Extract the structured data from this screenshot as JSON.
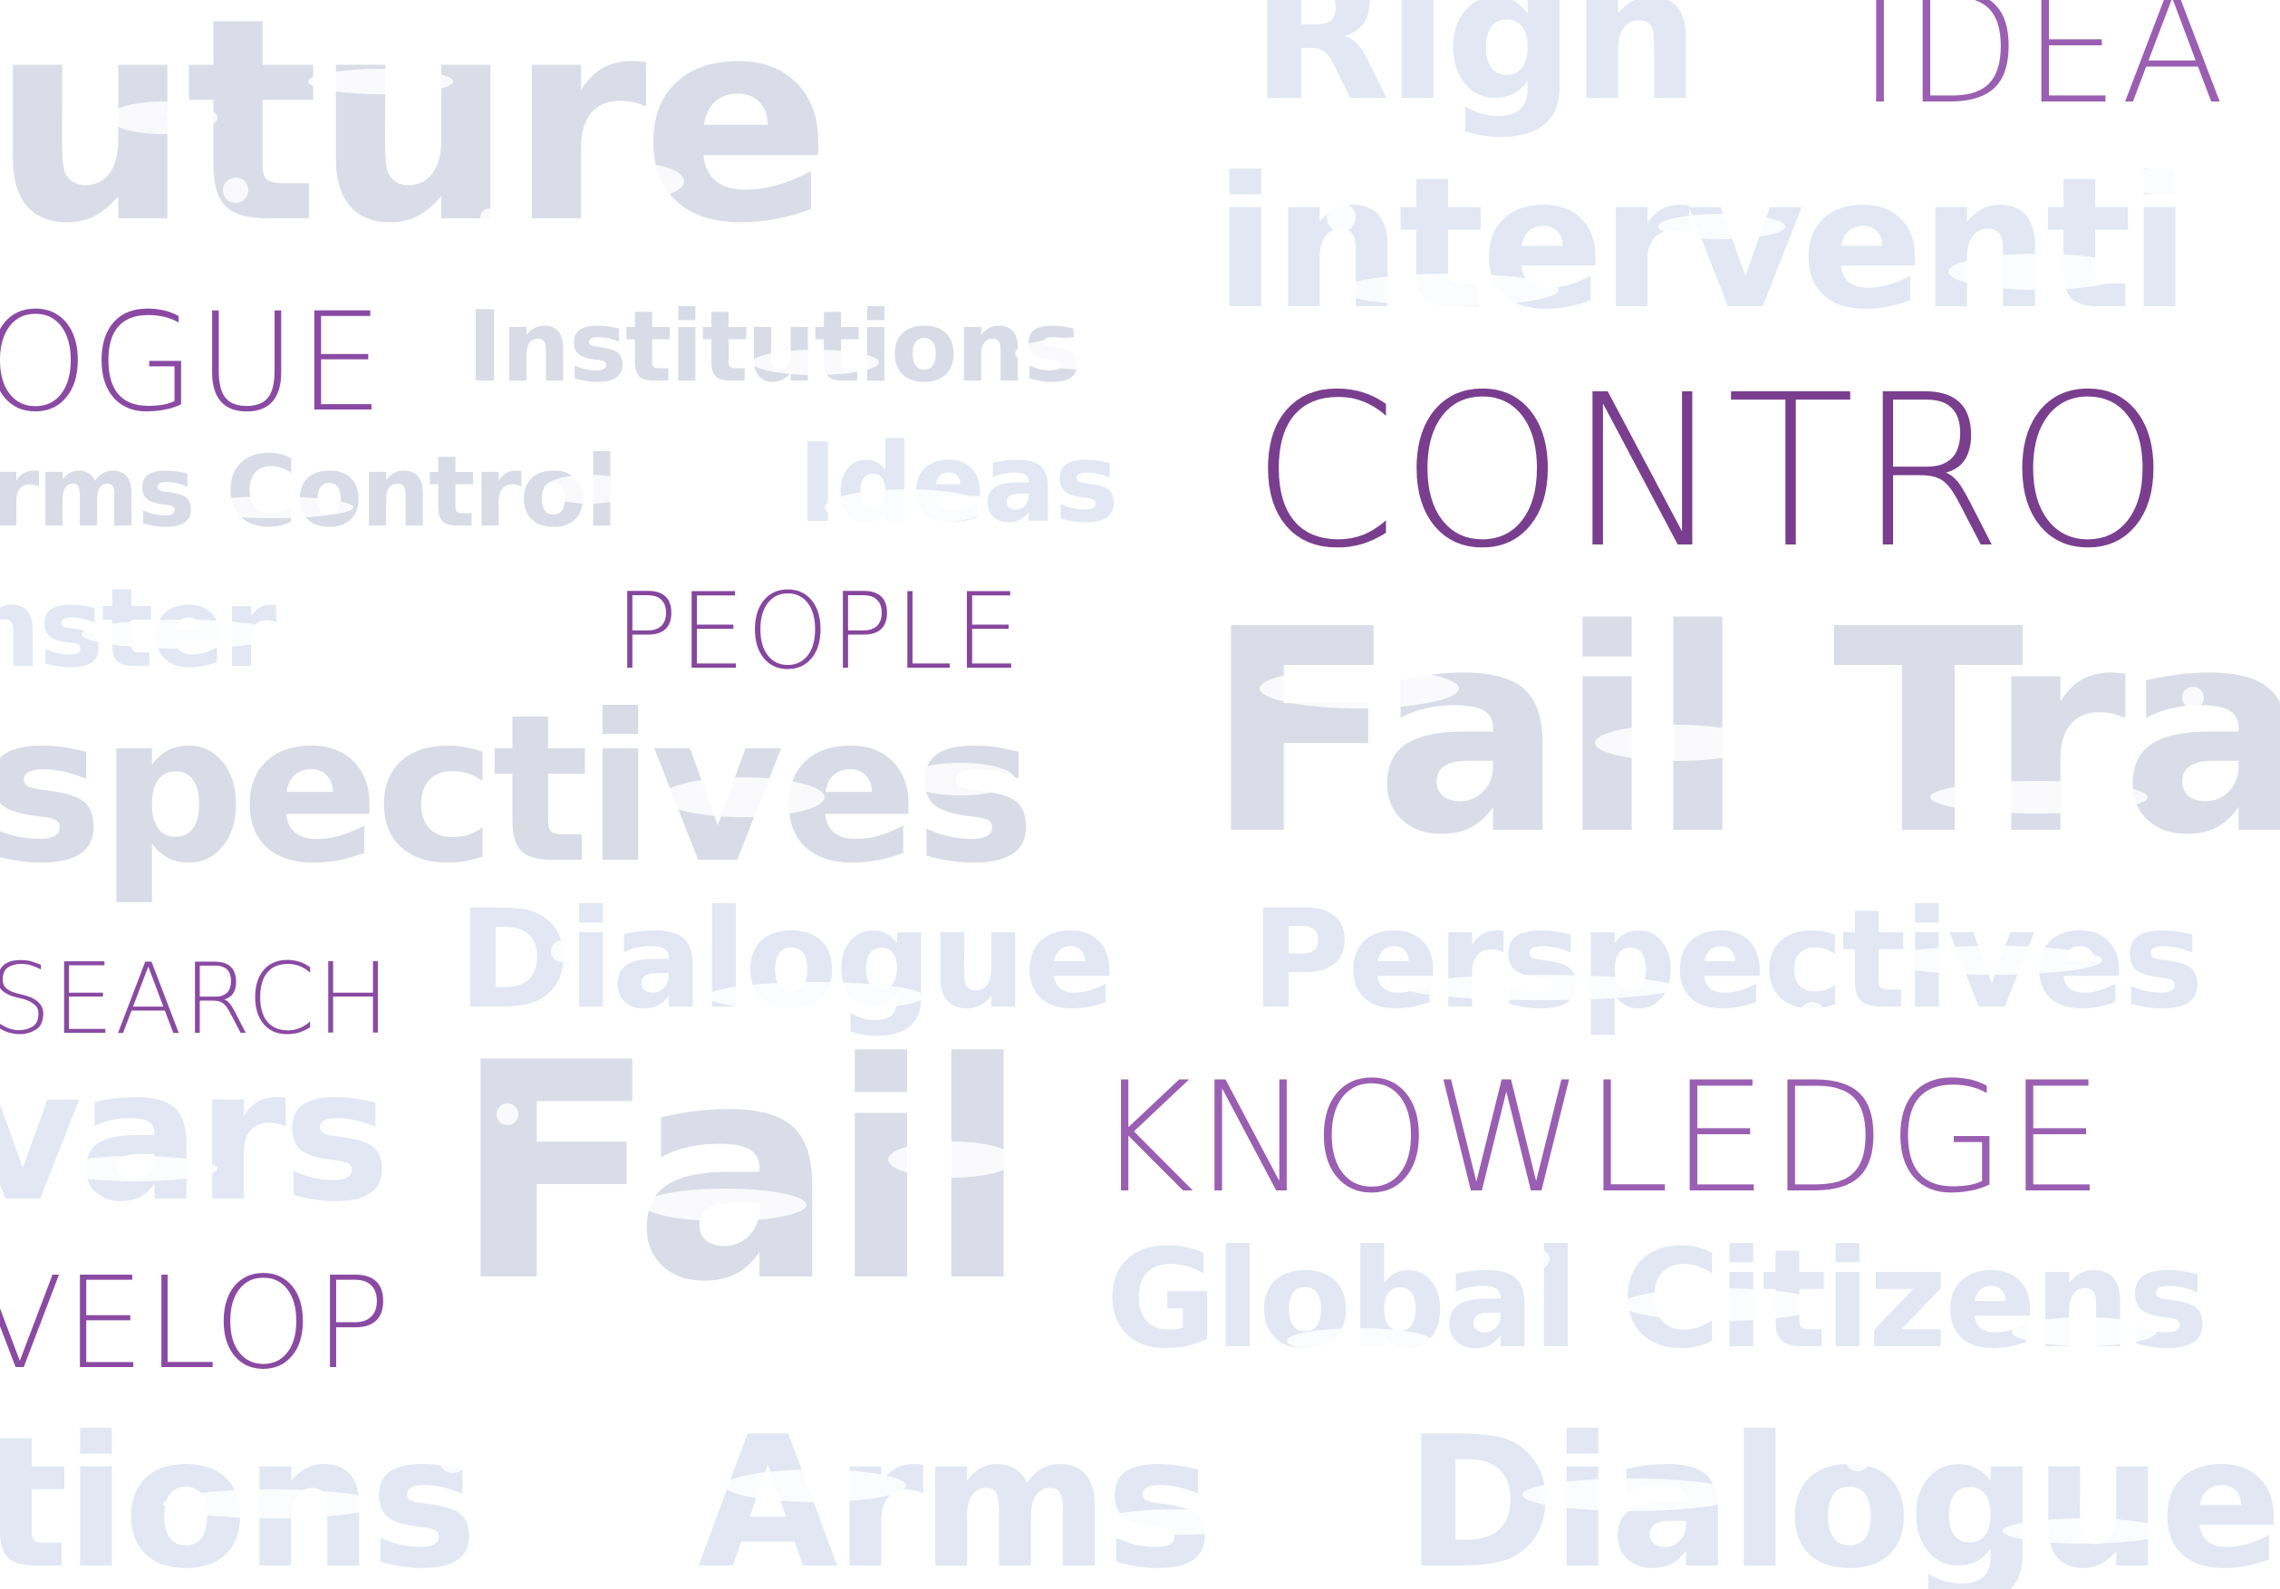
{
  "colors": {
    "background": "#ffffff",
    "word_light": "#e2e7f3",
    "word_gray": "#d9dbe6",
    "accent_purple": "#7a3e8f",
    "accent_light_purple": "#b88ac8"
  },
  "background_words": [
    "uture",
    "Righ",
    "interventi",
    "Institutions",
    "rms Control",
    "Ideas",
    "nster",
    "spectives",
    "Fail Tra",
    "Dialogue",
    "Perspectives",
    "vars",
    "Fail",
    "Global Citizens",
    "tions",
    "Arms",
    "Dialogue"
  ],
  "foreground_words": [
    "IDEA",
    "OGUE",
    "CONTRO",
    "PEOPLE",
    "SEARCH",
    "KNOWLEDGE",
    "VELOP"
  ]
}
